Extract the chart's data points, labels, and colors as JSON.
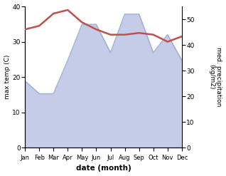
{
  "months": [
    "Jan",
    "Feb",
    "Mar",
    "Apr",
    "May",
    "Jun",
    "Jul",
    "Aug",
    "Sep",
    "Oct",
    "Nov",
    "Dec"
  ],
  "max_temp": [
    33.5,
    34.5,
    38.0,
    39.0,
    35.5,
    33.5,
    32.0,
    32.0,
    32.5,
    32.0,
    30.0,
    31.5
  ],
  "precipitation": [
    26,
    21,
    21,
    34,
    48,
    48,
    37,
    52,
    52,
    37,
    44,
    34
  ],
  "temp_color": "#c0504d",
  "precip_fill_color": "#c5cce8",
  "precip_line_color": "#9aa8d8",
  "ylabel_left": "max temp (C)",
  "ylabel_right": "med. precipitation\n(kg/m2)",
  "xlabel": "date (month)",
  "ylim_left": [
    0,
    40
  ],
  "ylim_right": [
    0,
    55
  ],
  "yticks_left": [
    0,
    10,
    20,
    30,
    40
  ],
  "yticks_right": [
    0,
    10,
    20,
    30,
    40,
    50
  ],
  "bg_color": "#ffffff"
}
